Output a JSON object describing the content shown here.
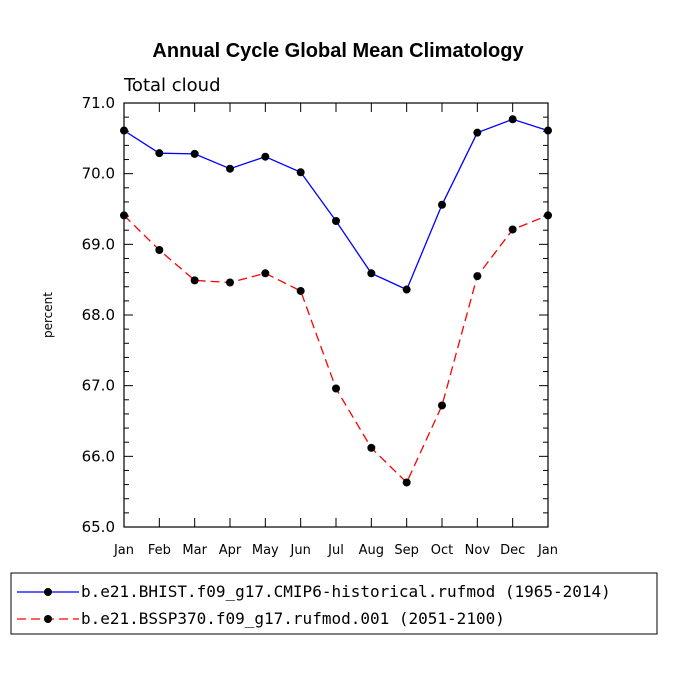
{
  "chart_data": {
    "type": "line",
    "title": "Annual Cycle Global Mean Climatology",
    "subtitle": "Total cloud",
    "xlabel": "",
    "ylabel": "percent",
    "categories": [
      "Jan",
      "Feb",
      "Mar",
      "Apr",
      "May",
      "Jun",
      "Jul",
      "Aug",
      "Sep",
      "Oct",
      "Nov",
      "Dec",
      "Jan"
    ],
    "ylim": [
      65.0,
      71.0
    ],
    "yticks": [
      "65.0",
      "66.0",
      "67.0",
      "68.0",
      "69.0",
      "70.0",
      "71.0"
    ],
    "grid": false,
    "legend_position": "bottom",
    "series": [
      {
        "name": "b.e21.BHIST.f09_g17.CMIP6-historical.rufmod (1965-2014)",
        "color": "#0000ff",
        "dash": "solid",
        "values": [
          70.61,
          70.29,
          70.28,
          70.07,
          70.24,
          70.02,
          69.33,
          68.59,
          68.36,
          69.56,
          70.58,
          70.77,
          70.61
        ]
      },
      {
        "name": "b.e21.BSSP370.f09_g17.rufmod.001 (2051-2100)",
        "color": "#ff0000",
        "dash": "dashed",
        "values": [
          69.41,
          68.92,
          68.49,
          68.46,
          68.59,
          68.34,
          66.96,
          66.12,
          65.63,
          66.72,
          68.55,
          69.21,
          69.41
        ]
      }
    ]
  }
}
